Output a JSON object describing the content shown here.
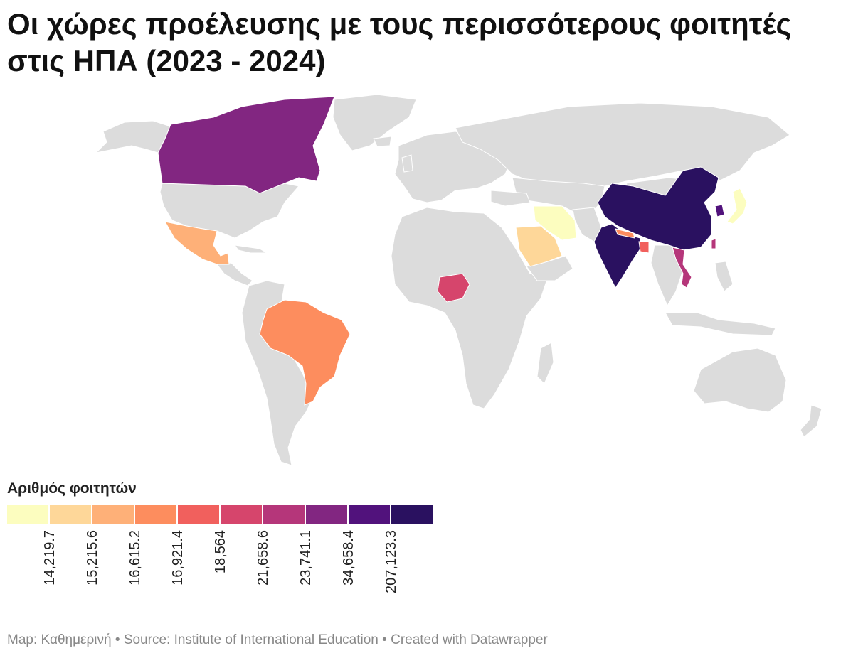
{
  "title": "Οι χώρες προέλευσης με τους περισσότερους φοιτητές στις ΗΠΑ (2023 - 2024)",
  "legend": {
    "title": "Αριθμός φοιτητών",
    "colors": [
      "#fcfdbf",
      "#fed799",
      "#feb078",
      "#fd8d5e",
      "#f1605d",
      "#d6456c",
      "#b5367a",
      "#822681",
      "#51127c",
      "#2a1160"
    ],
    "ticks": [
      "14,219.7",
      "15,215.6",
      "16,615.2",
      "16,921.4",
      "18,564",
      "21,658.6",
      "23,741.1",
      "34,658.4",
      "207,123.3"
    ]
  },
  "map": {
    "base_color": "#dcdcdc",
    "highlighted": [
      {
        "region": "canada",
        "color": "#822681"
      },
      {
        "region": "mexico",
        "color": "#feb078"
      },
      {
        "region": "brazil",
        "color": "#fd8d5e"
      },
      {
        "region": "nigeria",
        "color": "#d6456c"
      },
      {
        "region": "saudi-arabia",
        "color": "#fed799"
      },
      {
        "region": "iran",
        "color": "#fcfdbf"
      },
      {
        "region": "india",
        "color": "#2a1160"
      },
      {
        "region": "nepal",
        "color": "#fd8d5e"
      },
      {
        "region": "bangladesh",
        "color": "#f1605d"
      },
      {
        "region": "china",
        "color": "#2a1160"
      },
      {
        "region": "south-korea",
        "color": "#51127c"
      },
      {
        "region": "japan",
        "color": "#fcfdbf"
      },
      {
        "region": "taiwan",
        "color": "#b5367a"
      },
      {
        "region": "vietnam",
        "color": "#b5367a"
      }
    ]
  },
  "footer": {
    "map_credit": "Map: Καθημερινή",
    "separator": " • ",
    "source": "Source: Institute of International Education",
    "created": "Created with Datawrapper"
  }
}
